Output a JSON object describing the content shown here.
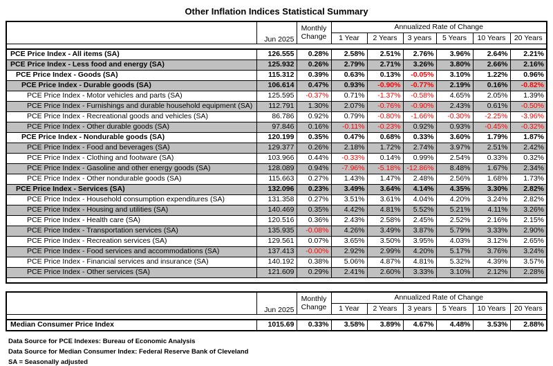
{
  "title": "Other Inflation Indices Statistical Summary",
  "header": {
    "date_label": "Jun 2025",
    "monthly_line1": "Monthly",
    "monthly_line2": "Change",
    "arc_label": "Annualized Rate of Change",
    "year_cols": [
      "1 Year",
      "2 Years",
      "3 years",
      "5 Years",
      "10 Years",
      "20 Years"
    ]
  },
  "pce_table": {
    "rows": [
      {
        "label": "PCE Price Index - All items (SA)",
        "indent": 0,
        "bold": true,
        "shaded": false,
        "values": [
          "126.555",
          "0.28%",
          "2.58%",
          "2.51%",
          "2.76%",
          "3.96%",
          "2.64%",
          "2.21%"
        ]
      },
      {
        "label": "PCE Price Index - Less food and energy (SA)",
        "indent": 0,
        "bold": true,
        "shaded": true,
        "values": [
          "125.932",
          "0.26%",
          "2.79%",
          "2.71%",
          "3.26%",
          "3.80%",
          "2.66%",
          "2.16%"
        ]
      },
      {
        "label": "PCE Price Index - Goods (SA)",
        "indent": 1,
        "bold": true,
        "shaded": false,
        "values": [
          "115.312",
          "0.39%",
          "0.63%",
          "0.13%",
          "-0.05%",
          "3.10%",
          "1.22%",
          "0.96%"
        ]
      },
      {
        "label": "PCE Price Index - Durable goods (SA)",
        "indent": 2,
        "bold": true,
        "shaded": true,
        "values": [
          "106.614",
          "0.47%",
          "0.93%",
          "-0.90%",
          "-0.77%",
          "2.19%",
          "0.16%",
          "-0.82%"
        ]
      },
      {
        "label": "PCE Price Index - Motor vehicles and parts (SA)",
        "indent": 3,
        "bold": false,
        "shaded": false,
        "values": [
          "125.595",
          "-0.37%",
          "0.71%",
          "-1.37%",
          "-0.58%",
          "4.65%",
          "2.05%",
          "1.39%"
        ]
      },
      {
        "label": "PCE Price Index - Furnishings and durable household equipment (SA)",
        "indent": 3,
        "bold": false,
        "shaded": true,
        "values": [
          "112.791",
          "1.30%",
          "2.07%",
          "-0.76%",
          "-0.90%",
          "2.43%",
          "0.61%",
          "-0.50%"
        ]
      },
      {
        "label": "PCE Price Index - Recreational goods and vehicles (SA)",
        "indent": 3,
        "bold": false,
        "shaded": false,
        "values": [
          "86.786",
          "0.92%",
          "0.79%",
          "-0.80%",
          "-1.66%",
          "-0.30%",
          "-2.25%",
          "-3.96%"
        ]
      },
      {
        "label": "PCE Price Index - Other durable goods (SA)",
        "indent": 3,
        "bold": false,
        "shaded": true,
        "values": [
          "97.846",
          "0.16%",
          "-0.11%",
          "-0.23%",
          "0.92%",
          "0.93%",
          "-0.45%",
          "-0.32%"
        ]
      },
      {
        "label": "PCE Price Index - Nondurable goods (SA)",
        "indent": 2,
        "bold": true,
        "shaded": false,
        "values": [
          "120.199",
          "0.35%",
          "0.47%",
          "0.68%",
          "0.33%",
          "3.60%",
          "1.79%",
          "1.87%"
        ]
      },
      {
        "label": "PCE Price Index - Food and beverages (SA)",
        "indent": 3,
        "bold": false,
        "shaded": true,
        "values": [
          "129.377",
          "0.26%",
          "2.18%",
          "1.72%",
          "2.74%",
          "3.97%",
          "2.51%",
          "2.42%"
        ]
      },
      {
        "label": "PCE Price Index - Clothing and footware (SA)",
        "indent": 3,
        "bold": false,
        "shaded": false,
        "values": [
          "103.966",
          "0.44%",
          "-0.33%",
          "0.14%",
          "0.99%",
          "2.54%",
          "0.33%",
          "0.32%"
        ]
      },
      {
        "label": "PCE Price Index - Gasoline and other energy goods (SA)",
        "indent": 3,
        "bold": false,
        "shaded": true,
        "values": [
          "128.089",
          "0.94%",
          "-7.96%",
          "-5.18%",
          "-12.86%",
          "8.48%",
          "1.67%",
          "2.34%"
        ]
      },
      {
        "label": "PCE Price Index - Other nondurable goods (SA)",
        "indent": 3,
        "bold": false,
        "shaded": false,
        "values": [
          "115.663",
          "0.27%",
          "1.43%",
          "1.47%",
          "2.48%",
          "2.56%",
          "1.68%",
          "1.73%"
        ]
      },
      {
        "label": "PCE Price Index - Services (SA)",
        "indent": 1,
        "bold": true,
        "shaded": true,
        "values": [
          "132.096",
          "0.23%",
          "3.49%",
          "3.64%",
          "4.14%",
          "4.35%",
          "3.30%",
          "2.82%"
        ]
      },
      {
        "label": "PCE Price Index - Household consumption expenditures (SA)",
        "indent": 3,
        "bold": false,
        "shaded": false,
        "values": [
          "131.358",
          "0.27%",
          "3.51%",
          "3.61%",
          "4.04%",
          "4.20%",
          "3.24%",
          "2.82%"
        ]
      },
      {
        "label": "PCE Price Index - Housing and utilities (SA)",
        "indent": 3,
        "bold": false,
        "shaded": true,
        "values": [
          "140.469",
          "0.35%",
          "4.42%",
          "4.81%",
          "5.52%",
          "5.21%",
          "4.11%",
          "3.26%"
        ]
      },
      {
        "label": "PCE Price Index - Health care (SA)",
        "indent": 3,
        "bold": false,
        "shaded": false,
        "values": [
          "120.516",
          "0.36%",
          "2.43%",
          "2.58%",
          "2.45%",
          "2.52%",
          "2.16%",
          "2.15%"
        ]
      },
      {
        "label": "PCE Price Index - Transportation services (SA)",
        "indent": 3,
        "bold": false,
        "shaded": true,
        "values": [
          "135.935",
          "-0.08%",
          "4.26%",
          "3.49%",
          "3.87%",
          "5.79%",
          "3.33%",
          "2.90%"
        ]
      },
      {
        "label": "PCE Price Index - Recreation services (SA)",
        "indent": 3,
        "bold": false,
        "shaded": false,
        "values": [
          "129.561",
          "0.07%",
          "3.65%",
          "3.50%",
          "3.95%",
          "4.03%",
          "3.12%",
          "2.65%"
        ]
      },
      {
        "label": "PCE Price Index - Food services and accommodations (SA)",
        "indent": 3,
        "bold": false,
        "shaded": true,
        "values": [
          "137.413",
          "-0.00%",
          "2.92%",
          "2.99%",
          "4.20%",
          "5.17%",
          "3.76%",
          "3.24%"
        ]
      },
      {
        "label": "PCE Price Index - Financial services and insurance (SA)",
        "indent": 3,
        "bold": false,
        "shaded": false,
        "values": [
          "140.192",
          "0.38%",
          "5.06%",
          "4.87%",
          "4.81%",
          "5.32%",
          "4.39%",
          "3.57%"
        ]
      },
      {
        "label": "PCE Price Index - Other services (SA)",
        "indent": 3,
        "bold": false,
        "shaded": true,
        "values": [
          "121.609",
          "0.29%",
          "2.41%",
          "2.60%",
          "3.33%",
          "3.10%",
          "2.12%",
          "2.28%"
        ]
      }
    ]
  },
  "median_table": {
    "rows": [
      {
        "label": "Median Consumer Price Index",
        "indent": 0,
        "bold": true,
        "shaded": false,
        "values": [
          "1015.69",
          "0.33%",
          "3.58%",
          "3.89%",
          "4.67%",
          "4.48%",
          "3.53%",
          "2.88%"
        ]
      }
    ]
  },
  "footnotes": [
    "Data Source for PCE Indexes:  Bureau of Economic Analysis",
    "Data Source for Median Consumer Index:  Federal Reserve Bank of Cleveland",
    "SA = Seasonally adjusted"
  ],
  "colors": {
    "negative_text": "#ff0000",
    "shaded_row": "#c0c0c0",
    "border": "#000000"
  }
}
